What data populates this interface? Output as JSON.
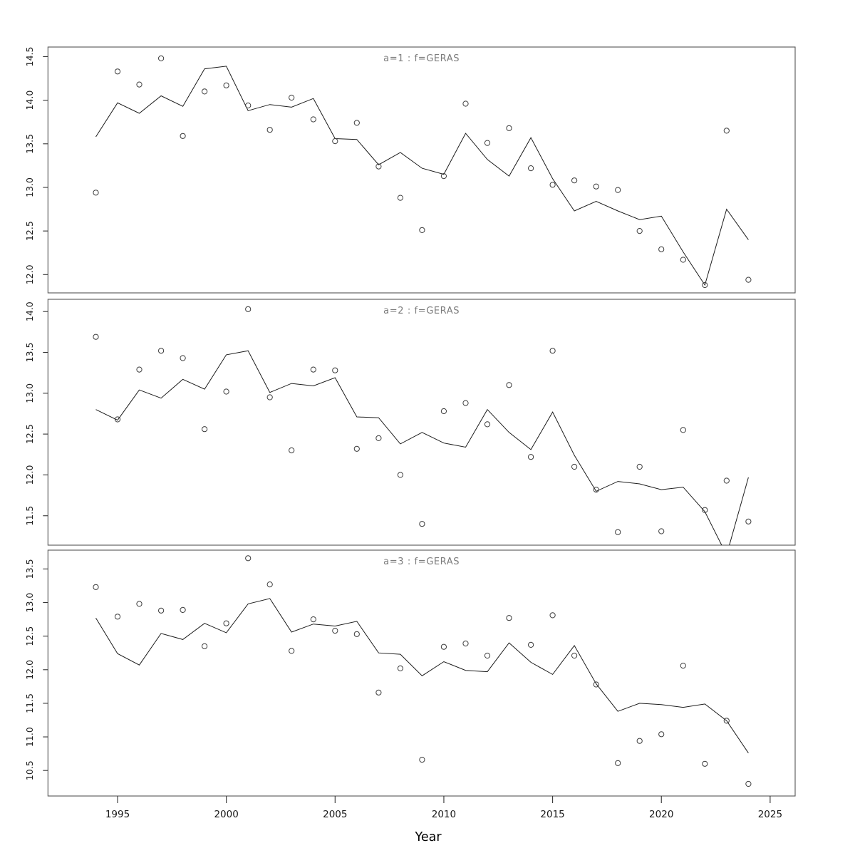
{
  "chart_data": {
    "type": "scatter",
    "xlabel": "Year",
    "x_ticks": [
      1995,
      2000,
      2005,
      2010,
      2015,
      2020,
      2025
    ],
    "x_range": [
      1991.8,
      2026.15
    ],
    "years": [
      1994,
      1995,
      1996,
      1997,
      1998,
      1999,
      2000,
      2001,
      2002,
      2003,
      2004,
      2005,
      2006,
      2007,
      2008,
      2009,
      2010,
      2011,
      2012,
      2013,
      2014,
      2015,
      2016,
      2017,
      2018,
      2019,
      2020,
      2021,
      2022,
      2023,
      2024
    ],
    "panels": [
      {
        "title": "a=1 : f=GERAS",
        "y_ticks": [
          12.0,
          12.5,
          13.0,
          13.5,
          14.0,
          14.5
        ],
        "y_range": [
          11.79,
          14.61
        ],
        "points": [
          12.94,
          14.33,
          14.18,
          14.48,
          13.59,
          14.1,
          14.17,
          13.94,
          13.66,
          14.03,
          13.78,
          13.53,
          13.74,
          13.24,
          12.88,
          12.51,
          13.13,
          13.96,
          13.51,
          13.68,
          13.22,
          13.03,
          13.08,
          13.01,
          12.97,
          12.5,
          12.29,
          12.17,
          11.88,
          13.65,
          11.94
        ],
        "line": [
          13.58,
          13.97,
          13.85,
          14.05,
          13.93,
          14.36,
          14.39,
          13.88,
          13.95,
          13.92,
          14.02,
          13.56,
          13.55,
          13.26,
          13.4,
          13.22,
          13.15,
          13.62,
          13.32,
          13.13,
          13.57,
          13.1,
          12.73,
          12.84,
          12.73,
          12.63,
          12.67,
          12.26,
          11.88,
          12.75,
          12.4
        ]
      },
      {
        "title": "a=2 : f=GERAS",
        "y_ticks": [
          11.5,
          12.0,
          12.5,
          13.0,
          13.5,
          14.0
        ],
        "y_range": [
          11.14,
          14.15
        ],
        "points": [
          13.69,
          12.68,
          13.29,
          13.52,
          13.43,
          12.56,
          13.02,
          14.03,
          12.95,
          12.3,
          13.29,
          13.28,
          12.32,
          12.45,
          12.0,
          11.4,
          12.78,
          12.88,
          12.62,
          13.1,
          12.22,
          13.52,
          12.1,
          11.82,
          11.3,
          12.1,
          11.31,
          12.55,
          11.57,
          11.93,
          11.43
        ],
        "line": [
          12.8,
          12.67,
          13.04,
          12.94,
          13.17,
          13.05,
          13.47,
          13.52,
          13.01,
          13.12,
          13.09,
          13.19,
          12.71,
          12.7,
          12.38,
          12.52,
          12.39,
          12.34,
          12.8,
          12.52,
          12.31,
          12.77,
          12.24,
          11.8,
          11.92,
          11.89,
          11.82,
          11.85,
          11.55,
          11.02,
          11.97
        ]
      },
      {
        "title": "a=3 : f=GERAS",
        "y_ticks": [
          10.5,
          11.0,
          11.5,
          12.0,
          12.5,
          13.0,
          13.5
        ],
        "y_range": [
          10.12,
          13.78
        ],
        "points": [
          13.23,
          12.79,
          12.98,
          12.88,
          12.89,
          12.35,
          12.69,
          13.66,
          13.27,
          12.28,
          12.75,
          12.58,
          12.53,
          11.66,
          12.02,
          10.66,
          12.34,
          12.39,
          12.21,
          12.77,
          12.37,
          12.81,
          12.21,
          11.78,
          10.61,
          10.94,
          11.04,
          12.06,
          10.6,
          11.24,
          10.3
        ],
        "line": [
          12.77,
          12.24,
          12.07,
          12.54,
          12.45,
          12.69,
          12.55,
          12.98,
          13.06,
          12.56,
          12.68,
          12.65,
          12.72,
          12.25,
          12.23,
          11.91,
          12.12,
          11.99,
          11.97,
          12.4,
          12.11,
          11.93,
          12.36,
          11.79,
          11.38,
          11.5,
          11.48,
          11.44,
          11.49,
          11.24,
          10.76
        ]
      }
    ]
  },
  "colors": {
    "background": "#ffffff",
    "fit_line": "#1c1c1c",
    "point_stroke": "#3a3a3a",
    "panel_border": "#555555",
    "tick": "#333333",
    "tick_text": "#1a1a1a",
    "title_text": "#7c7c7c",
    "axis_title_text": "#000000"
  }
}
